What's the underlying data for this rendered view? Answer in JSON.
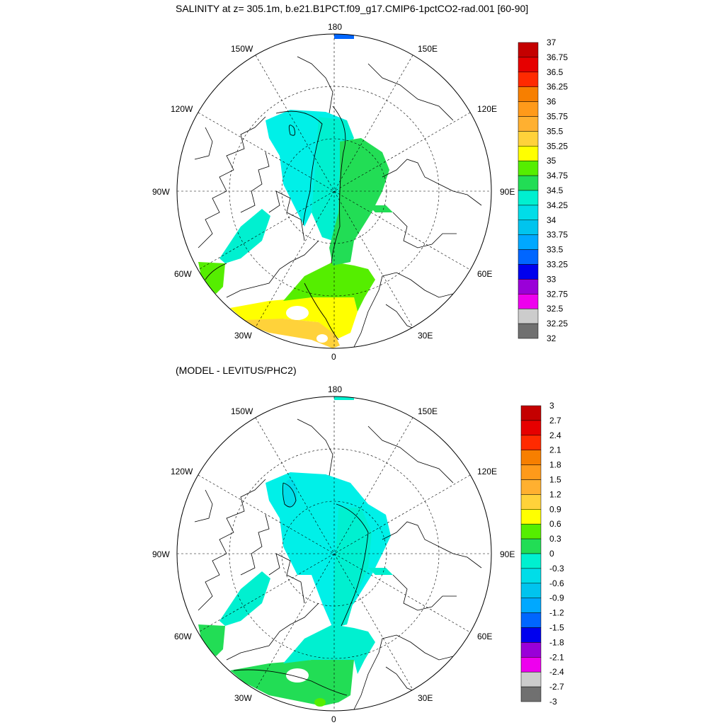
{
  "title": "SALINITY at z= 305.1m, b.e21.B1PCT.f09_g17.CMIP6-1pctCO2-rad.001 [60-90]",
  "subtitle": "(MODEL - LEVITUS/PHC2)",
  "map_labels": {
    "top": "180",
    "bottom": "0",
    "left": "90W",
    "right": "90E",
    "upper_left_1": "150W",
    "upper_left_2": "120W",
    "upper_right_1": "150E",
    "upper_right_2": "120E",
    "lower_left_1": "60W",
    "lower_left_2": "30W",
    "lower_right_1": "60E",
    "lower_right_2": "30E"
  },
  "legend1": {
    "labels": [
      "37",
      "36.75",
      "36.5",
      "36.25",
      "36",
      "35.75",
      "35.5",
      "35.25",
      "35",
      "34.75",
      "34.5",
      "34.25",
      "34",
      "33.75",
      "33.5",
      "33.25",
      "33",
      "32.75",
      "32.5",
      "32.25",
      "32"
    ],
    "colors": [
      "#c40000",
      "#e60000",
      "#ff2a00",
      "#f77f00",
      "#ff9a1a",
      "#ffb030",
      "#ffd23a",
      "#ffff00",
      "#55ee00",
      "#22dd55",
      "#00f0d0",
      "#00dde8",
      "#00c4ee",
      "#00a8ff",
      "#0066ff",
      "#0000ee",
      "#9a00d8",
      "#ee00ee",
      "#cccccc",
      "#707070"
    ]
  },
  "legend2": {
    "labels": [
      "3",
      "2.7",
      "2.4",
      "2.1",
      "1.8",
      "1.5",
      "1.2",
      "0.9",
      "0.6",
      "0.3",
      "0",
      "-0.3",
      "-0.6",
      "-0.9",
      "-1.2",
      "-1.5",
      "-1.8",
      "-2.1",
      "-2.4",
      "-2.7",
      "-3"
    ],
    "colors": [
      "#c40000",
      "#e60000",
      "#ff2a00",
      "#f77f00",
      "#ff9a1a",
      "#ffb030",
      "#ffd23a",
      "#ffff00",
      "#55ee00",
      "#22dd55",
      "#00f0d0",
      "#00dde8",
      "#00c4ee",
      "#00a8ff",
      "#0066ff",
      "#0000ee",
      "#9a00d8",
      "#ee00ee",
      "#cccccc",
      "#707070"
    ]
  },
  "fields": {
    "p1_atlantic_yellow": "#ffee00",
    "p1_atlantic_green": "#55ee00",
    "p1_basin_teal": "#00f0d0",
    "p1_basin_cyan": "#00f0e8",
    "p1_eurasian_green": "#22dd55",
    "p1_orange_yellow": "#ffd23a",
    "p2_basin_cyan": "#00f0e8",
    "p2_teal": "#00f0d0",
    "p2_green": "#22dd55",
    "p2_deep_cyan": "#00dde8"
  }
}
